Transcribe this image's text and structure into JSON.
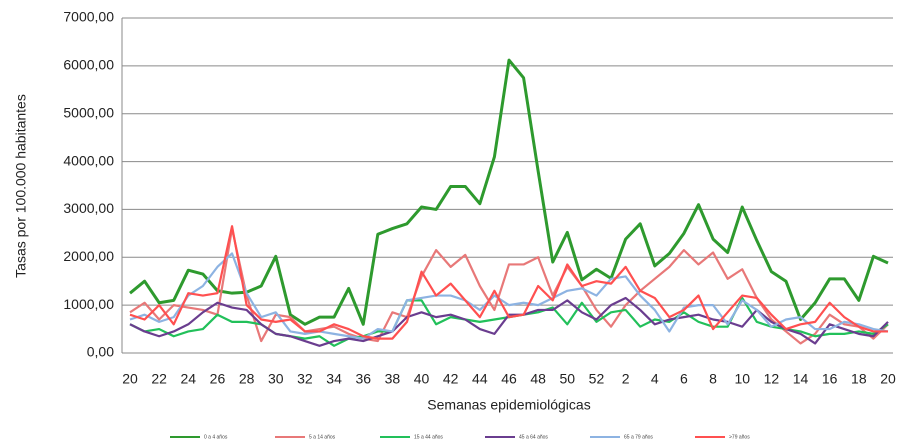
{
  "chart_data": {
    "type": "line",
    "y_label": "Tasas por 100.000 habitantes",
    "x_label": "Semanas epidemiológicas",
    "categories": [
      "20",
      null,
      "22",
      null,
      "24",
      null,
      "26",
      null,
      "28",
      null,
      "30",
      null,
      "32",
      null,
      "34",
      null,
      "36",
      null,
      "38",
      null,
      "40",
      null,
      "42",
      null,
      "44",
      null,
      "46",
      null,
      "48",
      null,
      "50",
      null,
      "52",
      null,
      "2",
      null,
      "4",
      null,
      "6",
      null,
      "8",
      null,
      "10",
      null,
      "12",
      null,
      "14",
      null,
      "16",
      null,
      "18",
      null,
      "20"
    ],
    "ylim": [
      0,
      7000
    ],
    "yticks": [
      {
        "value": 0,
        "label": "0,00"
      },
      {
        "value": 1000,
        "label": "1000,00"
      },
      {
        "value": 2000,
        "label": "2000,00"
      },
      {
        "value": 3000,
        "label": "3000,00"
      },
      {
        "value": 4000,
        "label": "4000,00"
      },
      {
        "value": 5000,
        "label": "5000,00"
      },
      {
        "value": 6000,
        "label": "6000,00"
      },
      {
        "value": 7000,
        "label": "7000,00"
      }
    ],
    "grid": true,
    "legend": "bottom",
    "series": [
      {
        "name": "0 a 4 años",
        "color": "#2e9a2e",
        "values": [
          1250,
          1500,
          1050,
          1100,
          1730,
          1650,
          1300,
          1250,
          1270,
          1400,
          2020,
          800,
          600,
          750,
          750,
          1350,
          600,
          2480,
          2600,
          2700,
          3050,
          3000,
          3480,
          3480,
          3120,
          4100,
          6120,
          5750,
          3800,
          1900,
          2520,
          1530,
          1750,
          1560,
          2380,
          2700,
          1820,
          2080,
          2500,
          3100,
          2380,
          2100,
          3050,
          2350,
          1700,
          1500,
          700,
          1050,
          1550,
          1550,
          1100,
          2020,
          1880
        ]
      },
      {
        "name": "5 a 14 años",
        "color": "#e87878",
        "values": [
          850,
          1050,
          700,
          1000,
          950,
          900,
          800,
          2600,
          1200,
          250,
          800,
          750,
          450,
          500,
          550,
          400,
          300,
          250,
          850,
          750,
          1600,
          2150,
          1800,
          2050,
          1400,
          900,
          1850,
          1850,
          2000,
          1200,
          1800,
          1400,
          900,
          550,
          1000,
          1300,
          1550,
          1800,
          2150,
          1850,
          2100,
          1550,
          1750,
          1150,
          700,
          450,
          200,
          400,
          800,
          600,
          550,
          300,
          600
        ]
      },
      {
        "name": "15 a 44 años",
        "color": "#22c05a",
        "values": [
          600,
          450,
          500,
          350,
          450,
          500,
          800,
          650,
          650,
          600,
          400,
          350,
          300,
          350,
          150,
          300,
          350,
          450,
          450,
          1100,
          1100,
          600,
          750,
          700,
          650,
          700,
          750,
          800,
          850,
          950,
          600,
          1050,
          650,
          850,
          900,
          550,
          700,
          650,
          850,
          650,
          550,
          550,
          1150,
          650,
          550,
          500,
          450,
          350,
          400,
          400,
          450,
          400,
          600
        ]
      },
      {
        "name": "45 a 64 años",
        "color": "#6a3d8f",
        "values": [
          600,
          450,
          350,
          450,
          600,
          850,
          1050,
          950,
          900,
          600,
          400,
          350,
          250,
          150,
          250,
          300,
          250,
          350,
          450,
          750,
          850,
          750,
          800,
          700,
          500,
          400,
          800,
          800,
          900,
          900,
          1100,
          850,
          700,
          1000,
          1150,
          900,
          600,
          700,
          750,
          800,
          700,
          650,
          550,
          900,
          650,
          500,
          400,
          200,
          600,
          500,
          400,
          350,
          650
        ]
      },
      {
        "name": "65 a 79 años",
        "color": "#8db3e2",
        "values": [
          700,
          800,
          650,
          750,
          1200,
          1400,
          1800,
          2080,
          1250,
          750,
          850,
          450,
          400,
          450,
          400,
          350,
          300,
          500,
          450,
          1100,
          1150,
          1200,
          1200,
          1100,
          900,
          1200,
          1000,
          1050,
          1000,
          1150,
          1300,
          1350,
          1200,
          1550,
          1600,
          1200,
          900,
          450,
          950,
          1000,
          1000,
          600,
          1100,
          900,
          550,
          700,
          750,
          500,
          500,
          650,
          600,
          500,
          450
        ]
      },
      {
        "name": ">79 años",
        "color": "#ff5050",
        "values": [
          800,
          700,
          1000,
          600,
          1250,
          1200,
          1250,
          2650,
          1000,
          700,
          650,
          700,
          450,
          450,
          600,
          500,
          350,
          300,
          300,
          650,
          1700,
          1200,
          1450,
          1100,
          750,
          1300,
          750,
          800,
          1400,
          1100,
          1850,
          1400,
          1500,
          1450,
          1800,
          1300,
          1150,
          750,
          900,
          1200,
          500,
          850,
          1200,
          1150,
          800,
          500,
          600,
          650,
          1050,
          750,
          550,
          450,
          450
        ]
      }
    ]
  }
}
